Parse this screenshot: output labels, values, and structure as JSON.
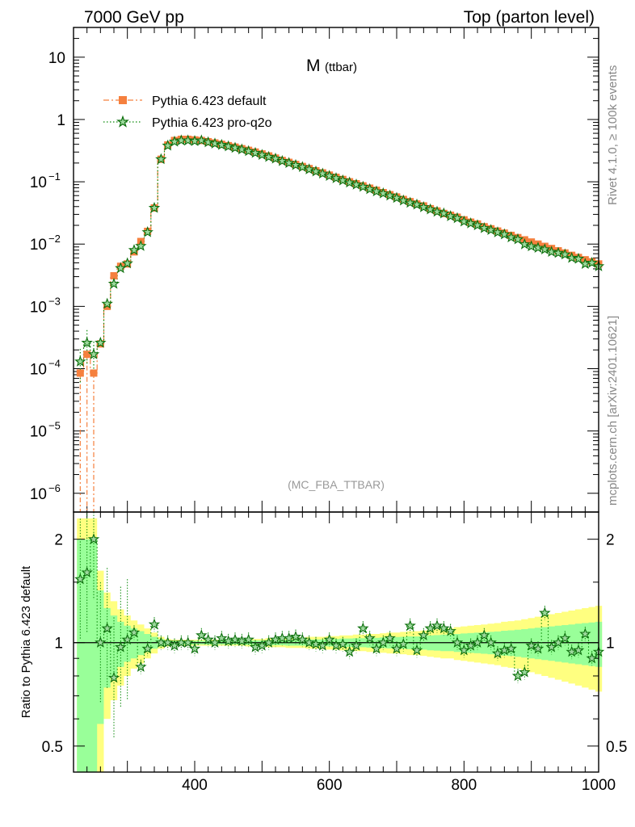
{
  "header": {
    "left": "7000 GeV pp",
    "right": "Top (parton level)"
  },
  "side_text": {
    "top": "Rivet 4.1.0, ≥ 100k events",
    "bottom": "mcplots.cern.ch [arXiv:2401.10621]"
  },
  "colors": {
    "default": "#f5803e",
    "proq2o": "#0b8a0b",
    "band_yellow": "#ffff80",
    "band_green": "#99ff99"
  },
  "chart_data": [
    {
      "type": "scatter",
      "panel": "main",
      "title_main": "M",
      "title_sub": "(ttbar)",
      "watermark": "(MC_FBA_TTBAR)",
      "yscale": "log",
      "xlim": [
        220,
        1000
      ],
      "ylim": [
        5e-07,
        30
      ],
      "yticks": [
        {
          "value": 1e-06,
          "base": "10",
          "exp": "−6"
        },
        {
          "value": 1e-05,
          "base": "10",
          "exp": "−5"
        },
        {
          "value": 0.0001,
          "base": "10",
          "exp": "−4"
        },
        {
          "value": 0.001,
          "base": "10",
          "exp": "−3"
        },
        {
          "value": 0.01,
          "base": "10",
          "exp": "−2"
        },
        {
          "value": 0.1,
          "base": "10",
          "exp": "−1"
        },
        {
          "value": 1,
          "base": "1",
          "exp": ""
        },
        {
          "value": 10,
          "base": "10",
          "exp": ""
        }
      ],
      "legend_position": "top-left",
      "series": [
        {
          "name": "Pythia 6.423 default",
          "marker": "square",
          "line": "dash-dot",
          "x": [
            230,
            240,
            250,
            260,
            270,
            280,
            290,
            300,
            310,
            320,
            330,
            340,
            350,
            360,
            370,
            380,
            390,
            400,
            410,
            420,
            430,
            440,
            450,
            460,
            470,
            480,
            490,
            500,
            510,
            520,
            530,
            540,
            550,
            560,
            570,
            580,
            590,
            600,
            610,
            620,
            630,
            640,
            650,
            660,
            670,
            680,
            690,
            700,
            710,
            720,
            730,
            740,
            750,
            760,
            770,
            780,
            790,
            800,
            810,
            820,
            830,
            840,
            850,
            860,
            870,
            880,
            890,
            900,
            910,
            920,
            930,
            940,
            950,
            960,
            970,
            980,
            990,
            1000
          ],
          "y": [
            8.5e-05,
            0.00017,
            8.5e-05,
            0.00025,
            0.001,
            0.0031,
            0.0044,
            0.0048,
            0.0075,
            0.011,
            0.016,
            0.038,
            0.23,
            0.39,
            0.46,
            0.48,
            0.48,
            0.47,
            0.46,
            0.44,
            0.42,
            0.4,
            0.38,
            0.36,
            0.34,
            0.32,
            0.3,
            0.28,
            0.26,
            0.24,
            0.22,
            0.205,
            0.19,
            0.176,
            0.163,
            0.15,
            0.139,
            0.128,
            0.118,
            0.109,
            0.1,
            0.093,
            0.086,
            0.079,
            0.073,
            0.067,
            0.062,
            0.057,
            0.052,
            0.048,
            0.044,
            0.041,
            0.037,
            0.034,
            0.031,
            0.029,
            0.027,
            0.0245,
            0.0225,
            0.021,
            0.019,
            0.0176,
            0.0162,
            0.015,
            0.0138,
            0.0127,
            0.0117,
            0.0108,
            0.01,
            0.0092,
            0.0085,
            0.0078,
            0.0072,
            0.0066,
            0.0061,
            0.0056,
            0.0052,
            0.0048
          ]
        },
        {
          "name": "Pythia 6.423 pro-q2o",
          "marker": "star",
          "line": "dotted",
          "x": [
            230,
            240,
            250,
            260,
            270,
            280,
            290,
            300,
            310,
            320,
            330,
            340,
            350,
            360,
            370,
            380,
            390,
            400,
            410,
            420,
            430,
            440,
            450,
            460,
            470,
            480,
            490,
            500,
            510,
            520,
            530,
            540,
            550,
            560,
            570,
            580,
            590,
            600,
            610,
            620,
            630,
            640,
            650,
            660,
            670,
            680,
            690,
            700,
            710,
            720,
            730,
            740,
            750,
            760,
            770,
            780,
            790,
            800,
            810,
            820,
            830,
            840,
            850,
            860,
            870,
            880,
            890,
            900,
            910,
            920,
            930,
            940,
            950,
            960,
            970,
            980,
            990,
            1000
          ],
          "y": [
            0.00013,
            0.00026,
            0.00017,
            0.00026,
            0.0011,
            0.0023,
            0.0041,
            0.0049,
            0.008,
            0.0093,
            0.0155,
            0.038,
            0.23,
            0.38,
            0.44,
            0.46,
            0.46,
            0.45,
            0.46,
            0.43,
            0.41,
            0.39,
            0.37,
            0.35,
            0.33,
            0.31,
            0.29,
            0.27,
            0.25,
            0.235,
            0.215,
            0.2,
            0.185,
            0.172,
            0.158,
            0.146,
            0.135,
            0.124,
            0.114,
            0.105,
            0.097,
            0.09,
            0.083,
            0.076,
            0.07,
            0.065,
            0.06,
            0.055,
            0.05,
            0.046,
            0.043,
            0.039,
            0.036,
            0.033,
            0.031,
            0.028,
            0.026,
            0.023,
            0.0215,
            0.02,
            0.018,
            0.0168,
            0.0154,
            0.0143,
            0.0128,
            0.0119,
            0.0099,
            0.0092,
            0.0087,
            0.0082,
            0.0075,
            0.0072,
            0.0068,
            0.006,
            0.0058,
            0.0048,
            0.005,
            0.0044
          ]
        }
      ]
    },
    {
      "type": "line",
      "panel": "ratio",
      "ylabel": "Ratio to Pythia 6.423 default",
      "xlabel": "",
      "xlim": [
        220,
        1000
      ],
      "ylim": [
        0.42,
        2.4
      ],
      "yscale": "log",
      "reference_line": 1,
      "xticks": [
        400,
        600,
        800,
        1000
      ],
      "yticks": [
        {
          "value": 0.5,
          "label": "0.5"
        },
        {
          "value": 1,
          "label": "1"
        },
        {
          "value": 2,
          "label": "2"
        }
      ],
      "band_x": [
        230,
        240,
        250,
        260,
        270,
        280,
        290,
        300,
        310,
        320,
        330,
        340,
        350,
        360,
        370,
        380,
        390,
        400,
        410,
        420,
        430,
        440,
        450,
        460,
        470,
        480,
        490,
        500,
        510,
        520,
        530,
        540,
        550,
        560,
        570,
        580,
        590,
        600,
        610,
        620,
        630,
        640,
        650,
        660,
        670,
        680,
        690,
        700,
        710,
        720,
        730,
        740,
        750,
        760,
        770,
        780,
        790,
        800,
        810,
        820,
        830,
        840,
        850,
        860,
        870,
        880,
        890,
        900,
        910,
        920,
        930,
        940,
        950,
        960,
        970,
        980,
        990,
        1000
      ],
      "band_yellow_half": [
        1.3,
        1.3,
        1.3,
        0.62,
        0.4,
        0.32,
        0.25,
        0.2,
        0.16,
        0.13,
        0.1,
        0.07,
        0.04,
        0.025,
        0.02,
        0.02,
        0.02,
        0.02,
        0.02,
        0.02,
        0.02,
        0.02,
        0.02,
        0.02,
        0.02,
        0.025,
        0.025,
        0.025,
        0.03,
        0.03,
        0.03,
        0.035,
        0.035,
        0.035,
        0.04,
        0.04,
        0.04,
        0.045,
        0.045,
        0.05,
        0.05,
        0.055,
        0.055,
        0.06,
        0.06,
        0.065,
        0.07,
        0.07,
        0.075,
        0.08,
        0.08,
        0.085,
        0.09,
        0.095,
        0.1,
        0.1,
        0.11,
        0.115,
        0.12,
        0.125,
        0.13,
        0.135,
        0.14,
        0.15,
        0.155,
        0.16,
        0.17,
        0.18,
        0.19,
        0.2,
        0.21,
        0.22,
        0.23,
        0.24,
        0.25,
        0.26,
        0.27,
        0.28
      ],
      "band_green_half": [
        1.0,
        1.0,
        1.0,
        0.42,
        0.26,
        0.2,
        0.15,
        0.12,
        0.1,
        0.08,
        0.06,
        0.04,
        0.025,
        0.015,
        0.012,
        0.012,
        0.012,
        0.012,
        0.012,
        0.012,
        0.012,
        0.012,
        0.012,
        0.012,
        0.012,
        0.015,
        0.015,
        0.015,
        0.017,
        0.017,
        0.017,
        0.02,
        0.02,
        0.02,
        0.022,
        0.022,
        0.022,
        0.025,
        0.025,
        0.028,
        0.028,
        0.03,
        0.03,
        0.033,
        0.033,
        0.036,
        0.038,
        0.038,
        0.04,
        0.043,
        0.043,
        0.046,
        0.05,
        0.052,
        0.055,
        0.055,
        0.06,
        0.063,
        0.066,
        0.069,
        0.072,
        0.075,
        0.078,
        0.083,
        0.086,
        0.09,
        0.095,
        0.1,
        0.105,
        0.11,
        0.115,
        0.12,
        0.125,
        0.13,
        0.135,
        0.14,
        0.145,
        0.15
      ],
      "series": [
        {
          "name": "Pythia 6.423 pro-q2o",
          "x": [
            230,
            240,
            250,
            260,
            270,
            280,
            290,
            300,
            310,
            320,
            330,
            340,
            350,
            360,
            370,
            380,
            390,
            400,
            410,
            420,
            430,
            440,
            450,
            460,
            470,
            480,
            490,
            500,
            510,
            520,
            530,
            540,
            550,
            560,
            570,
            580,
            590,
            600,
            610,
            620,
            630,
            640,
            650,
            660,
            670,
            680,
            690,
            700,
            710,
            720,
            730,
            740,
            750,
            760,
            770,
            780,
            790,
            800,
            810,
            820,
            830,
            840,
            850,
            860,
            870,
            880,
            890,
            900,
            910,
            920,
            930,
            940,
            950,
            960,
            970,
            980,
            990,
            1000
          ],
          "y": [
            1.53,
            1.6,
            2.0,
            1.0,
            1.1,
            0.79,
            0.97,
            1.02,
            1.07,
            0.85,
            0.96,
            1.13,
            1.0,
            1.0,
            0.98,
            1.0,
            1.0,
            0.96,
            1.05,
            1.02,
            1.0,
            1.03,
            1.01,
            1.02,
            1.01,
            1.02,
            0.97,
            0.98,
            1.0,
            1.02,
            1.03,
            1.03,
            1.04,
            1.02,
            1.0,
            0.99,
            0.98,
            1.02,
            0.98,
            0.99,
            0.94,
            0.98,
            1.1,
            1.03,
            0.96,
            1.0,
            1.03,
            0.96,
            0.99,
            1.12,
            0.95,
            1.05,
            1.1,
            1.12,
            1.1,
            1.08,
            1.0,
            0.95,
            0.98,
            1.0,
            1.05,
            1.0,
            0.93,
            0.95,
            0.96,
            0.8,
            0.82,
            0.98,
            0.96,
            1.22,
            0.97,
            1.0,
            1.03,
            0.94,
            0.95,
            1.06,
            0.9,
            0.94
          ]
        }
      ]
    }
  ]
}
